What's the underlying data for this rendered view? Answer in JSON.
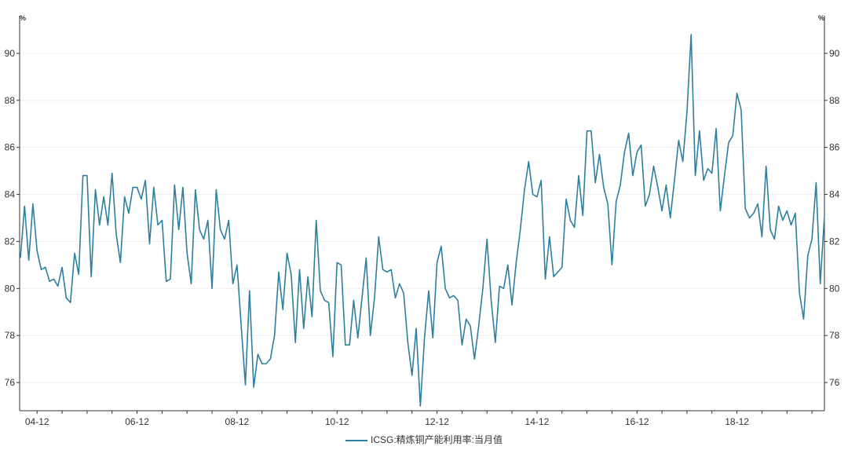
{
  "chart_data": {
    "type": "line",
    "title": "",
    "y_unit_left": "%",
    "y_unit_right": "%",
    "ylim": [
      74.8,
      91.6
    ],
    "yticks": [
      76,
      78,
      80,
      82,
      84,
      86,
      88,
      90
    ],
    "xticks": [
      "04-12",
      "06-12",
      "08-12",
      "10-12",
      "12-12",
      "14-12",
      "16-12",
      "18-12"
    ],
    "x_start": "2004-08",
    "x_frequency": "monthly",
    "grid": "horizontal",
    "legend_position": "bottom",
    "series": [
      {
        "name": "ICSG:精炼铜产能利用率:当月值",
        "color": "#2e7f9f",
        "values": [
          81.3,
          83.5,
          81.2,
          83.6,
          81.6,
          80.8,
          80.9,
          80.3,
          80.4,
          80.1,
          80.9,
          79.6,
          79.4,
          81.5,
          80.6,
          84.8,
          84.8,
          80.5,
          84.2,
          82.7,
          83.9,
          82.7,
          84.9,
          82.3,
          81.1,
          83.9,
          83.2,
          84.3,
          84.3,
          83.8,
          84.6,
          81.9,
          84.3,
          82.7,
          82.9,
          80.3,
          80.4,
          84.4,
          82.5,
          84.3,
          81.5,
          80.2,
          84.2,
          82.5,
          82.1,
          82.9,
          80.0,
          84.2,
          82.5,
          82.1,
          82.9,
          80.2,
          81.0,
          78.4,
          75.9,
          79.9,
          75.8,
          77.2,
          76.8,
          76.8,
          77.0,
          78.0,
          80.7,
          79.1,
          81.5,
          80.6,
          77.7,
          80.8,
          78.3,
          80.5,
          78.8,
          82.9,
          79.9,
          79.5,
          79.4,
          77.1,
          81.1,
          81.0,
          77.6,
          77.6,
          79.5,
          77.9,
          79.6,
          81.3,
          78.0,
          79.6,
          82.2,
          80.8,
          80.7,
          80.8,
          79.6,
          80.2,
          79.8,
          77.7,
          76.3,
          78.3,
          75.0,
          77.9,
          79.9,
          77.9,
          81.1,
          81.8,
          80.0,
          79.6,
          79.7,
          79.5,
          77.6,
          78.7,
          78.4,
          77.0,
          78.4,
          80.0,
          82.1,
          79.5,
          77.7,
          80.1,
          80.0,
          81.0,
          79.3,
          81.1,
          82.5,
          84.2,
          85.4,
          84.0,
          83.9,
          84.6,
          80.4,
          82.2,
          80.5,
          80.7,
          80.9,
          83.8,
          82.9,
          82.6,
          84.8,
          83.1,
          86.7,
          86.7,
          84.5,
          85.7,
          84.3,
          83.6,
          81.0,
          83.7,
          84.4,
          85.8,
          86.6,
          84.8,
          85.8,
          86.1,
          83.5,
          84.0,
          85.2,
          84.3,
          83.3,
          84.4,
          83.0,
          84.6,
          86.3,
          85.4,
          87.5,
          90.8,
          84.8,
          86.7,
          84.6,
          85.1,
          84.9,
          86.8,
          83.3,
          84.8,
          86.2,
          86.5,
          88.3,
          87.6,
          83.4,
          83.0,
          83.2,
          83.6,
          82.2,
          85.2,
          82.5,
          82.1,
          83.5,
          82.9,
          83.3,
          82.7,
          83.2,
          79.8,
          78.7,
          81.4,
          82.1,
          84.5,
          80.2,
          83.1
        ]
      }
    ]
  }
}
